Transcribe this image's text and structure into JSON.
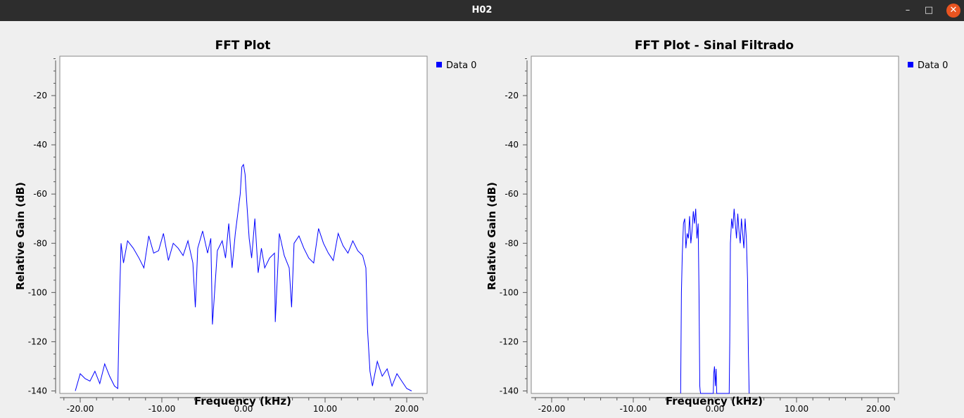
{
  "window": {
    "title": "H02",
    "minimize_glyph": "–",
    "maximize_glyph": "□",
    "close_glyph": "✕"
  },
  "colors": {
    "series": "#0000ff",
    "titlebar": "#2d2d2d",
    "close": "#e95420"
  },
  "chart_data": [
    {
      "type": "line",
      "title": "FFT Plot",
      "xlabel": "Frequency (kHz)",
      "ylabel": "Relative Gain (dB)",
      "xlim": [
        -22.5,
        22.5
      ],
      "ylim": [
        -141,
        -4
      ],
      "xticks": [
        -20,
        -10,
        0,
        10,
        20
      ],
      "xtick_labels": [
        "-20.00",
        "-10.00",
        "0.00",
        "10.00",
        "20.00"
      ],
      "yticks": [
        -20,
        -40,
        -60,
        -80,
        -100,
        -120,
        -140
      ],
      "ytick_labels": [
        "-20",
        "-40",
        "-60",
        "-80",
        "-100",
        "-120",
        "-140"
      ],
      "grid": false,
      "legend": "right",
      "series": [
        {
          "name": "Data 0",
          "color": "#0000ff",
          "x": [
            -20.6,
            -20,
            -19.4,
            -18.8,
            -18.2,
            -17.6,
            -17,
            -16.4,
            -15.8,
            -15.4,
            -15.2,
            -15,
            -14.7,
            -14.2,
            -13.5,
            -12.8,
            -12.2,
            -11.6,
            -11,
            -10.4,
            -9.8,
            -9.2,
            -8.6,
            -8,
            -7.4,
            -6.8,
            -6.2,
            -5.9,
            -5.6,
            -5,
            -4.4,
            -4,
            -3.8,
            -3.2,
            -2.6,
            -2.2,
            -1.8,
            -1.4,
            -1,
            -0.7,
            -0.4,
            -0.2,
            0,
            0.2,
            0.4,
            0.7,
            1,
            1.4,
            1.8,
            2.2,
            2.6,
            3.2,
            3.8,
            3.9,
            4.4,
            5,
            5.6,
            5.9,
            6.2,
            6.8,
            7.4,
            8,
            8.6,
            9.2,
            9.8,
            10.4,
            11,
            11.6,
            12.2,
            12.8,
            13.4,
            14,
            14.6,
            15,
            15.2,
            15.5,
            15.8,
            16.4,
            17,
            17.6,
            18.2,
            18.8,
            19.4,
            20,
            20.6
          ],
          "y": [
            -140,
            -133,
            -135,
            -136,
            -132,
            -137,
            -129,
            -134,
            -138,
            -139,
            -105,
            -80,
            -88,
            -79,
            -82,
            -86,
            -90,
            -77,
            -84,
            -83,
            -76,
            -87,
            -80,
            -82,
            -85,
            -79,
            -88,
            -106,
            -82,
            -75,
            -84,
            -78,
            -113,
            -83,
            -79,
            -86,
            -72,
            -90,
            -76,
            -68,
            -60,
            -49,
            -48,
            -52,
            -63,
            -78,
            -86,
            -70,
            -92,
            -82,
            -90,
            -86,
            -84,
            -112,
            -76,
            -85,
            -90,
            -106,
            -80,
            -77,
            -82,
            -86,
            -88,
            -74,
            -80,
            -84,
            -87,
            -76,
            -81,
            -84,
            -79,
            -83,
            -85,
            -90,
            -115,
            -132,
            -138,
            -128,
            -134,
            -131,
            -138,
            -133,
            -136,
            -139,
            -140
          ]
        }
      ]
    },
    {
      "type": "line",
      "title": "FFT Plot - Sinal Filtrado",
      "xlabel": "Frequency (kHz)",
      "ylabel": "Relative Gain (dB)",
      "xlim": [
        -22.5,
        22.5
      ],
      "ylim": [
        -141,
        -4
      ],
      "xticks": [
        -20,
        -10,
        0,
        10,
        20
      ],
      "xtick_labels": [
        "-20.00",
        "-10.00",
        "0.00",
        "10.00",
        "20.00"
      ],
      "yticks": [
        -20,
        -40,
        -60,
        -80,
        -100,
        -120,
        -140
      ],
      "ytick_labels": [
        "-20",
        "-40",
        "-60",
        "-80",
        "-100",
        "-120",
        "-140"
      ],
      "grid": false,
      "legend": "right",
      "series": [
        {
          "name": "Data 0",
          "color": "#0000ff",
          "x": [
            -4.2,
            -4.1,
            -4,
            -3.85,
            -3.7,
            -3.55,
            -3.4,
            -3.25,
            -3.1,
            -2.95,
            -2.8,
            -2.65,
            -2.5,
            -2.35,
            -2.2,
            -2.05,
            -1.95,
            -1.85,
            -1.8,
            -1.75,
            -0.2,
            -0.15,
            -0.05,
            0.05,
            0.15,
            0.22,
            1.75,
            1.82,
            1.9,
            2.05,
            2.2,
            2.35,
            2.5,
            2.65,
            2.8,
            2.95,
            3.1,
            3.25,
            3.4,
            3.55,
            3.7,
            3.85,
            4,
            4.1,
            4.2
          ],
          "y": [
            -141,
            -100,
            -85,
            -72,
            -70,
            -82,
            -76,
            -78,
            -69,
            -80,
            -75,
            -67,
            -72,
            -66,
            -78,
            -72,
            -100,
            -138,
            -140,
            -141,
            -141,
            -133,
            -130,
            -138,
            -131,
            -141,
            -141,
            -120,
            -80,
            -70,
            -74,
            -66,
            -72,
            -78,
            -68,
            -75,
            -80,
            -70,
            -76,
            -82,
            -70,
            -78,
            -95,
            -125,
            -141
          ]
        }
      ]
    }
  ]
}
